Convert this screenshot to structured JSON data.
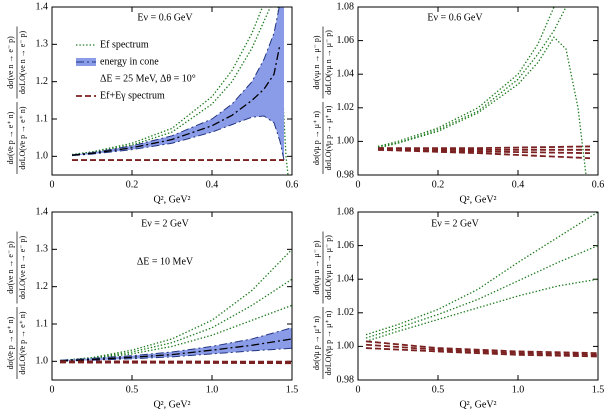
{
  "chart_data": [
    {
      "type": "line",
      "annotations": [
        "Eν = 0.6 GeV",
        "ΔE = 25 MeV, Δθ = 10°"
      ],
      "xlabel": "Q², GeV²",
      "ylabel": [
        "dσ(ν̄e p → e⁺ n)",
        "dσLO(ν̄e p → e⁺ n)",
        "dσ(νe n → e⁻ p)",
        "dσLO(νe n → e⁻ p)"
      ],
      "xlim": [
        0,
        0.6
      ],
      "ylim": [
        0.95,
        1.4
      ],
      "xticks": [
        0,
        0.2,
        0.4,
        0.6
      ],
      "yticks": [
        {
          "value": 1,
          "label": "1.0"
        },
        1.1,
        1.2,
        1.3,
        1.4
      ],
      "legend": "upper left",
      "series": [
        {
          "name": "Ef spectrum",
          "color": "#1d7a1d",
          "style": "dotted",
          "x": [
            0.05,
            0.1,
            0.2,
            0.3,
            0.4,
            0.45,
            0.5,
            0.53
          ],
          "values": [
            1.005,
            1.012,
            1.035,
            1.075,
            1.16,
            1.23,
            1.33,
            1.41
          ]
        },
        {
          "color": "#1d7a1d",
          "style": "dotted",
          "x": [
            0.05,
            0.1,
            0.2,
            0.3,
            0.4,
            0.45,
            0.5,
            0.55
          ],
          "values": [
            1.004,
            1.01,
            1.03,
            1.065,
            1.14,
            1.2,
            1.29,
            1.41
          ]
        },
        {
          "color": "#1d7a1d",
          "style": "dotted",
          "x": [
            0.565,
            0.575,
            0.585,
            0.59
          ],
          "values": [
            1.41,
            1.2,
            1.0,
            0.95
          ]
        },
        {
          "name": "energy in cone",
          "color": "#8a9be8",
          "line_color": "#23357f",
          "style": "band",
          "x": [
            0.05,
            0.1,
            0.2,
            0.3,
            0.4,
            0.45,
            0.5,
            0.53,
            0.555,
            0.57,
            0.58
          ],
          "high": [
            1.004,
            1.01,
            1.028,
            1.055,
            1.1,
            1.14,
            1.2,
            1.26,
            1.33,
            1.41,
            1.45
          ],
          "low": [
            1.002,
            1.006,
            1.018,
            1.035,
            1.065,
            1.085,
            1.105,
            1.108,
            1.09,
            1.04,
            0.99
          ]
        },
        {
          "color": "#000000",
          "style": "dashdot",
          "x": [
            0.05,
            0.1,
            0.2,
            0.3,
            0.4,
            0.45,
            0.5,
            0.53,
            0.555,
            0.57
          ],
          "values": [
            1.003,
            1.008,
            1.023,
            1.045,
            1.082,
            1.11,
            1.15,
            1.18,
            1.22,
            1.3
          ]
        },
        {
          "name": "Ef+Eγ spectrum",
          "color": "#7a2020",
          "style": "dashed",
          "x": [
            0.05,
            0.58
          ],
          "values": [
            0.99,
            0.99
          ]
        }
      ]
    },
    {
      "type": "line",
      "annotations": [
        "Eν = 0.6 GeV"
      ],
      "xlabel": "Q², GeV²",
      "ylabel": [
        "dσ(ν̄μ p → μ⁺ n)",
        "dσLO(ν̄μ p → μ⁺ n)",
        "dσ(νμ n → μ⁻ p)",
        "dσLO(νμ n → μ⁻ p)"
      ],
      "xlim": [
        0,
        0.6
      ],
      "ylim": [
        0.98,
        1.08
      ],
      "xticks": [
        0,
        0.2,
        0.4,
        0.6
      ],
      "yticks": [
        0.98,
        {
          "value": 1,
          "label": "1.00"
        },
        1.02,
        1.04,
        1.06,
        1.08
      ],
      "series": [
        {
          "color": "#1d7a1d",
          "style": "dotted",
          "x": [
            0.05,
            0.1,
            0.2,
            0.3,
            0.4,
            0.45,
            0.49
          ],
          "values": [
            0.997,
            1.0,
            1.008,
            1.02,
            1.04,
            1.058,
            1.08
          ]
        },
        {
          "color": "#1d7a1d",
          "style": "dotted",
          "x": [
            0.05,
            0.1,
            0.2,
            0.3,
            0.4,
            0.45,
            0.49,
            0.52
          ],
          "values": [
            0.997,
            0.999,
            1.007,
            1.018,
            1.037,
            1.052,
            1.066,
            1.08
          ]
        },
        {
          "color": "#1d7a1d",
          "style": "dotted",
          "x": [
            0.05,
            0.1,
            0.2,
            0.3,
            0.4,
            0.45,
            0.49,
            0.52,
            0.55,
            0.57
          ],
          "values": [
            0.996,
            0.999,
            1.006,
            1.017,
            1.034,
            1.047,
            1.062,
            1.055,
            1.02,
            0.98
          ]
        },
        {
          "color": "#7a2020",
          "style": "dashed",
          "x": [
            0.05,
            0.3,
            0.58
          ],
          "values": [
            0.996,
            0.996,
            0.997
          ]
        },
        {
          "color": "#7a2020",
          "style": "dashed",
          "x": [
            0.05,
            0.3,
            0.58
          ],
          "values": [
            0.996,
            0.995,
            0.995
          ]
        },
        {
          "color": "#7a2020",
          "style": "dashed",
          "x": [
            0.05,
            0.3,
            0.58
          ],
          "values": [
            0.995,
            0.994,
            0.993
          ]
        },
        {
          "color": "#7a2020",
          "style": "dashed",
          "x": [
            0.05,
            0.3,
            0.58
          ],
          "values": [
            0.995,
            0.993,
            0.99
          ]
        }
      ]
    },
    {
      "type": "line",
      "annotations": [
        "Eν = 2 GeV",
        "ΔE = 10 MeV"
      ],
      "xlabel": "Q², GeV²",
      "ylabel": [
        "dσ(ν̄e p → e⁺ n)",
        "dσLO(ν̄e p → e⁺ n)",
        "dσ(νe n → e⁻ p)",
        "dσLO(νe n → e⁻ p)"
      ],
      "xlim": [
        0,
        1.5
      ],
      "ylim": [
        0.95,
        1.4
      ],
      "xticks": [
        0,
        0.5,
        {
          "value": 1,
          "label": "1.0"
        },
        1.5
      ],
      "yticks": [
        {
          "value": 1,
          "label": "1.0"
        },
        1.1,
        1.2,
        1.3,
        1.4
      ],
      "series": [
        {
          "color": "#1d7a1d",
          "style": "dotted",
          "x": [
            0.05,
            0.25,
            0.5,
            0.75,
            1.0,
            1.25,
            1.5
          ],
          "values": [
            1.002,
            1.01,
            1.03,
            1.06,
            1.11,
            1.19,
            1.3
          ]
        },
        {
          "color": "#1d7a1d",
          "style": "dotted",
          "x": [
            0.05,
            0.25,
            0.5,
            0.75,
            1.0,
            1.25,
            1.5
          ],
          "values": [
            1.002,
            1.009,
            1.025,
            1.05,
            1.09,
            1.15,
            1.22
          ]
        },
        {
          "color": "#1d7a1d",
          "style": "dotted",
          "x": [
            0.05,
            0.25,
            0.5,
            0.75,
            1.0,
            1.25,
            1.5
          ],
          "values": [
            1.002,
            1.008,
            1.02,
            1.04,
            1.07,
            1.11,
            1.15
          ]
        },
        {
          "color": "#8a9be8",
          "line_color": "#23357f",
          "style": "band",
          "x": [
            0.05,
            0.25,
            0.5,
            0.75,
            1.0,
            1.25,
            1.5
          ],
          "high": [
            1.003,
            1.008,
            1.015,
            1.025,
            1.04,
            1.06,
            1.09
          ],
          "low": [
            1.0,
            1.003,
            1.007,
            1.012,
            1.02,
            1.028,
            1.035
          ]
        },
        {
          "color": "#000000",
          "style": "dashdot",
          "x": [
            0.05,
            0.25,
            0.5,
            0.75,
            1.0,
            1.25,
            1.5
          ],
          "values": [
            1.001,
            1.005,
            1.011,
            1.018,
            1.03,
            1.043,
            1.06
          ]
        },
        {
          "color": "#7a2020",
          "style": "dashed",
          "x": [
            0.05,
            1.5
          ],
          "values": [
            1.0,
            0.999
          ]
        },
        {
          "color": "#7a2020",
          "style": "dashed",
          "x": [
            0.05,
            1.5
          ],
          "values": [
            0.997,
            0.995
          ]
        }
      ]
    },
    {
      "type": "line",
      "annotations": [
        "Eν = 2 GeV"
      ],
      "xlabel": "Q², GeV²",
      "ylabel": [
        "dσ(ν̄μ p → μ⁺ n)",
        "dσLO(ν̄μ p → μ⁺ n)",
        "dσ(νμ n → μ⁻ p)",
        "dσLO(νμ n → μ⁻ p)"
      ],
      "xlim": [
        0,
        1.5
      ],
      "ylim": [
        0.98,
        1.08
      ],
      "xticks": [
        0,
        0.5,
        {
          "value": 1,
          "label": "1.0"
        },
        1.5
      ],
      "yticks": [
        0.98,
        {
          "value": 1,
          "label": "1.00"
        },
        1.02,
        1.04,
        1.06,
        1.08
      ],
      "series": [
        {
          "color": "#1d7a1d",
          "style": "dotted",
          "x": [
            0.05,
            0.25,
            0.5,
            0.75,
            1.0,
            1.25,
            1.5
          ],
          "values": [
            1.007,
            1.013,
            1.022,
            1.034,
            1.05,
            1.065,
            1.08
          ]
        },
        {
          "color": "#1d7a1d",
          "style": "dotted",
          "x": [
            0.05,
            0.25,
            0.5,
            0.75,
            1.0,
            1.25,
            1.5
          ],
          "values": [
            1.005,
            1.011,
            1.019,
            1.028,
            1.039,
            1.05,
            1.06
          ]
        },
        {
          "color": "#1d7a1d",
          "style": "dotted",
          "x": [
            0.05,
            0.25,
            0.5,
            0.75,
            1.0,
            1.25,
            1.5
          ],
          "values": [
            1.003,
            1.009,
            1.016,
            1.023,
            1.03,
            1.036,
            1.04
          ]
        },
        {
          "color": "#7a2020",
          "style": "dashed",
          "x": [
            0.05,
            0.5,
            1.0,
            1.5
          ],
          "values": [
            1.003,
            0.999,
            0.997,
            0.996
          ]
        },
        {
          "color": "#7a2020",
          "style": "dashed",
          "x": [
            0.05,
            0.5,
            1.0,
            1.5
          ],
          "values": [
            1.001,
            0.998,
            0.996,
            0.995
          ]
        },
        {
          "color": "#7a2020",
          "style": "dashed",
          "x": [
            0.05,
            0.5,
            1.0,
            1.5
          ],
          "values": [
            0.999,
            0.997,
            0.995,
            0.994
          ]
        }
      ]
    }
  ]
}
